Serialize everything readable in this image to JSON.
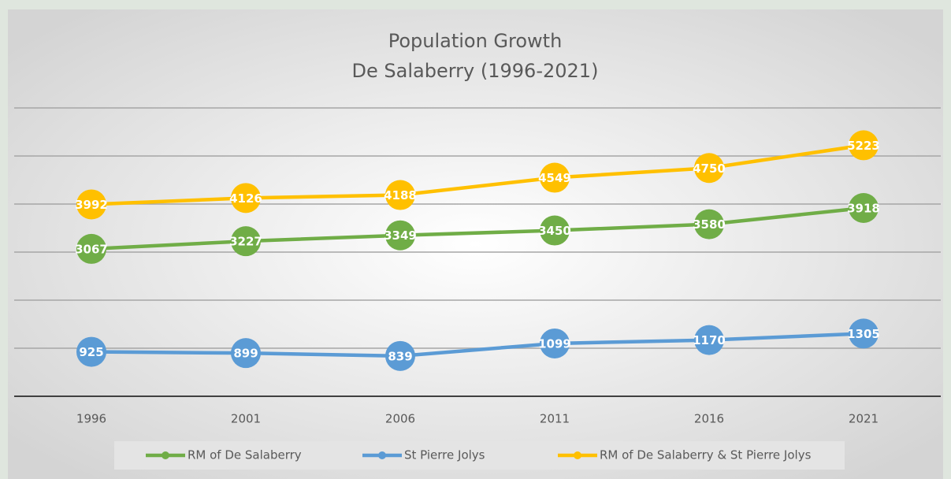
{
  "chart_data": {
    "type": "line",
    "title": "Population Growth",
    "subtitle": "De Salaberry (1996-2021)",
    "categories": [
      "1996",
      "2001",
      "2006",
      "2011",
      "2016",
      "2021"
    ],
    "series": [
      {
        "name": "RM of De Salaberry",
        "color": "#70ad47",
        "values": [
          3067,
          3227,
          3349,
          3450,
          3580,
          3918
        ]
      },
      {
        "name": "St Pierre Jolys",
        "color": "#5b9bd5",
        "values": [
          925,
          899,
          839,
          1099,
          1170,
          1305
        ]
      },
      {
        "name": "RM of De Salaberry & St Pierre Jolys",
        "color": "#ffc000",
        "values": [
          3992,
          4126,
          4188,
          4549,
          4750,
          5223
        ]
      }
    ],
    "ylim": [
      0,
      6000
    ],
    "yticks": [
      0,
      1000,
      2000,
      3000,
      4000,
      5000,
      6000
    ],
    "grid": true,
    "legend": "bottom"
  }
}
